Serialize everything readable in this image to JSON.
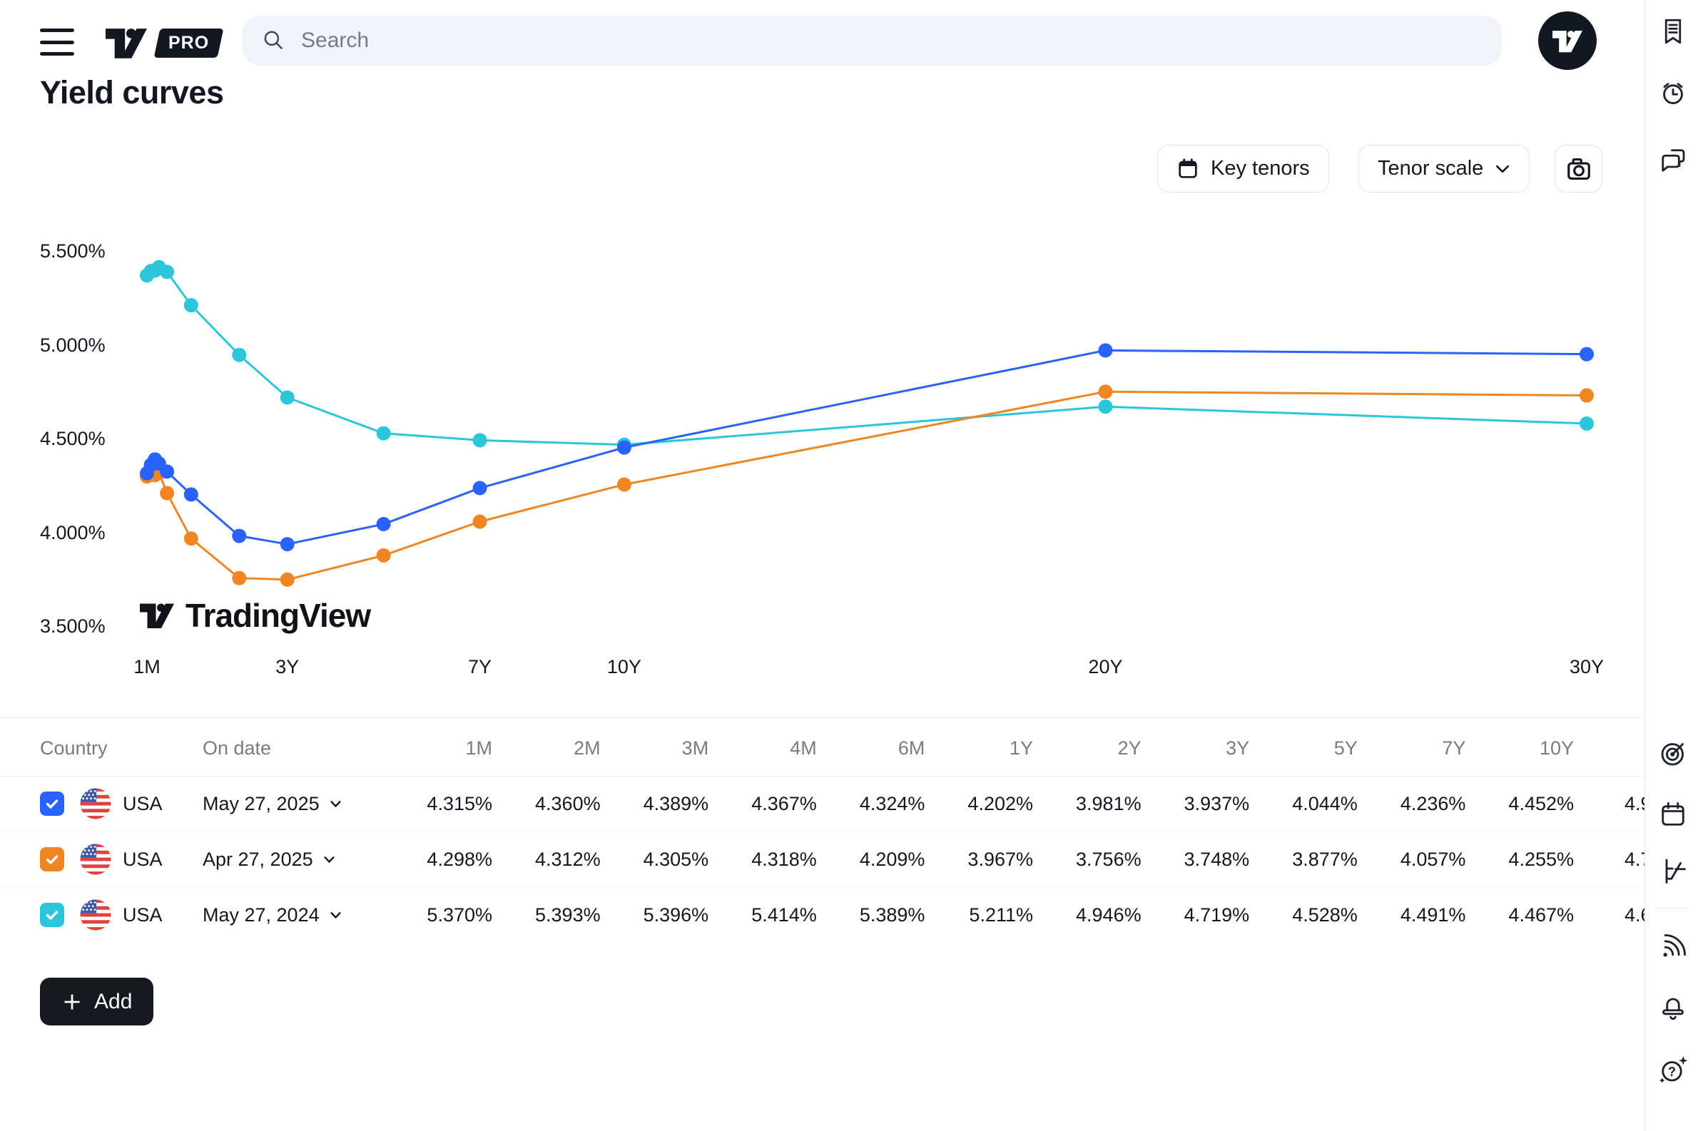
{
  "topbar": {
    "search_placeholder": "Search",
    "logo_badge": "PRO"
  },
  "page": {
    "title": "Yield curves"
  },
  "controls": {
    "key_tenors_label": "Key tenors",
    "tenor_scale_label": "Tenor scale"
  },
  "chart_data": {
    "type": "line",
    "x_axis": "tenor",
    "tenors": [
      "1M",
      "2M",
      "3M",
      "4M",
      "6M",
      "1Y",
      "2Y",
      "3Y",
      "5Y",
      "7Y",
      "10Y",
      "20Y",
      "30Y"
    ],
    "tenor_months": [
      1,
      2,
      3,
      4,
      6,
      12,
      24,
      36,
      60,
      84,
      120,
      240,
      360
    ],
    "x_tick_labels": [
      "1M",
      "3Y",
      "7Y",
      "10Y",
      "20Y",
      "30Y"
    ],
    "x_tick_months": [
      1,
      36,
      84,
      120,
      240,
      360
    ],
    "y_axis_labels": [
      "5.500%",
      "5.000%",
      "4.500%",
      "4.000%",
      "3.500%"
    ],
    "y_axis_values": [
      5.5,
      5.0,
      4.5,
      4.0,
      3.5
    ],
    "ylim": [
      3.35,
      5.65
    ],
    "grid": false,
    "legend_position": "none",
    "watermark": "TradingView",
    "series": [
      {
        "name": "USA May 27, 2025",
        "color": "#2962FF",
        "values": [
          4.315,
          4.36,
          4.389,
          4.367,
          4.324,
          4.202,
          3.981,
          3.937,
          4.044,
          4.236,
          4.452,
          4.97,
          4.95
        ]
      },
      {
        "name": "USA Apr 27, 2025",
        "color": "#F18521",
        "values": [
          4.298,
          4.312,
          4.305,
          4.318,
          4.209,
          3.967,
          3.756,
          3.748,
          3.877,
          4.057,
          4.255,
          4.75,
          4.73
        ]
      },
      {
        "name": "USA May 27, 2024",
        "color": "#2BC6D9",
        "values": [
          5.37,
          5.393,
          5.396,
          5.414,
          5.389,
          5.211,
          4.946,
          4.719,
          4.528,
          4.491,
          4.467,
          4.67,
          4.58
        ]
      }
    ]
  },
  "table": {
    "headers": {
      "country": "Country",
      "on_date": "On date"
    },
    "tenor_headers": [
      "1M",
      "2M",
      "3M",
      "4M",
      "6M",
      "1Y",
      "2Y",
      "3Y",
      "5Y",
      "7Y",
      "10Y"
    ],
    "rows": [
      {
        "country": "USA",
        "date": "May 27, 2025",
        "checked": true,
        "color": "#2962FF",
        "values": [
          "4.315%",
          "4.360%",
          "4.389%",
          "4.367%",
          "4.324%",
          "4.202%",
          "3.981%",
          "3.937%",
          "4.044%",
          "4.236%",
          "4.452%"
        ],
        "next_value_clipped": "4.9"
      },
      {
        "country": "USA",
        "date": "Apr 27, 2025",
        "checked": true,
        "color": "#F18521",
        "values": [
          "4.298%",
          "4.312%",
          "4.305%",
          "4.318%",
          "4.209%",
          "3.967%",
          "3.756%",
          "3.748%",
          "3.877%",
          "4.057%",
          "4.255%"
        ],
        "next_value_clipped": "4.7"
      },
      {
        "country": "USA",
        "date": "May 27, 2024",
        "checked": true,
        "color": "#2BC6D9",
        "values": [
          "5.370%",
          "5.393%",
          "5.396%",
          "5.414%",
          "5.389%",
          "5.211%",
          "4.946%",
          "4.719%",
          "4.528%",
          "4.491%",
          "4.467%"
        ],
        "next_value_clipped": "4.6"
      }
    ]
  },
  "add_button_label": "Add",
  "right_rail_icons": [
    "watchlist-icon",
    "alerts-icon",
    "chat-icon",
    "screener-icon",
    "calendar-icon",
    "yield-curves-icon",
    "news-flow-icon",
    "notifications-icon",
    "help-icon"
  ],
  "colors": {
    "text": "#131722",
    "muted": "#787B86",
    "border": "#E0E3EB",
    "search_bg": "#F0F3FA",
    "blue": "#2962FF",
    "orange": "#F18521",
    "cyan": "#2BC6D9"
  }
}
